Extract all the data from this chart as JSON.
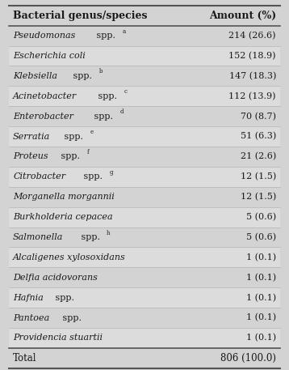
{
  "col1_header": "Bacterial genus/species",
  "col2_header": "Amount (%)",
  "rows": [
    {
      "italic": "Pseudomonas",
      "normal": " spp.",
      "sup": "a",
      "amount": "214 (26.6)"
    },
    {
      "italic": "Escherichia coli",
      "normal": "",
      "sup": "",
      "amount": "152 (18.9)"
    },
    {
      "italic": "Klebsiella",
      "normal": " spp.",
      "sup": "b",
      "amount": "147 (18.3)"
    },
    {
      "italic": "Acinetobacter",
      "normal": " spp.",
      "sup": "c",
      "amount": "112 (13.9)"
    },
    {
      "italic": "Enterobacter",
      "normal": " spp.",
      "sup": "d",
      "amount": "70 (8.7)"
    },
    {
      "italic": "Serratia",
      "normal": " spp.",
      "sup": "e",
      "amount": "51 (6.3)"
    },
    {
      "italic": "Proteus",
      "normal": " spp.",
      "sup": "f",
      "amount": "21 (2.6)"
    },
    {
      "italic": "Citrobacter",
      "normal": " spp.",
      "sup": "g",
      "amount": "12 (1.5)"
    },
    {
      "italic": "Morganella morgannii",
      "normal": "",
      "sup": "",
      "amount": "12 (1.5)"
    },
    {
      "italic": "Burkholderia cepacea",
      "normal": "",
      "sup": "",
      "amount": "5 (0.6)"
    },
    {
      "italic": "Salmonella",
      "normal": " spp.",
      "sup": "h",
      "amount": "5 (0.6)"
    },
    {
      "italic": "Alcaligenes xylosoxidans",
      "normal": "",
      "sup": "",
      "amount": "1 (0.1)"
    },
    {
      "italic": "Delfia acidovorans",
      "normal": "",
      "sup": "",
      "amount": "1 (0.1)"
    },
    {
      "italic": "Hafnia",
      "normal": " spp.",
      "sup": "",
      "amount": "1 (0.1)"
    },
    {
      "italic": "Pantoea",
      "normal": " spp.",
      "sup": "",
      "amount": "1 (0.1)"
    },
    {
      "italic": "Providencia stuartii",
      "normal": "",
      "sup": "",
      "amount": "1 (0.1)"
    }
  ],
  "total_label": "Total",
  "total_amount": "806 (100.0)",
  "bg_color": "#d3d3d3",
  "row_even_color": "#d3d3d3",
  "row_odd_color": "#dcdcdc",
  "total_row_color": "#d3d3d3",
  "text_color": "#1a1a1a",
  "font_size": 8.0,
  "header_font_size": 9.0
}
